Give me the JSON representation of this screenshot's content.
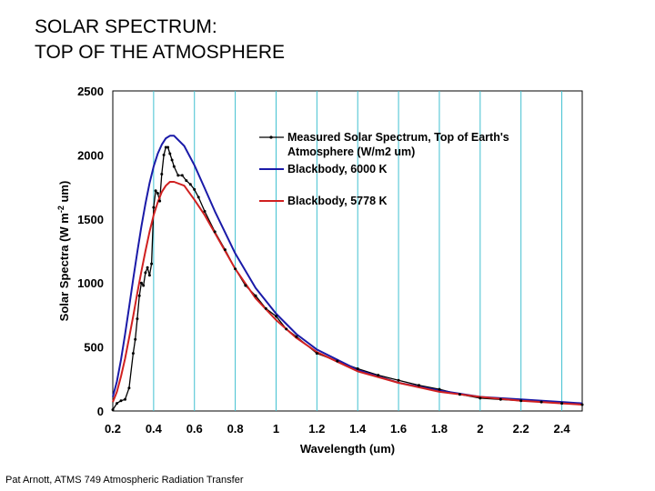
{
  "slide": {
    "title_line1": "SOLAR SPECTRUM:",
    "title_line2": "TOP OF THE ATMOSPHERE",
    "footer": "Pat Arnott, ATMS 749 Atmospheric Radiation Transfer"
  },
  "chart_data": {
    "type": "line",
    "title": "",
    "xlabel": "Wavelength (um)",
    "ylabel_main": "Solar Spectra (W m",
    "ylabel_sup": "-2",
    "ylabel_tail": " um)",
    "xlim": [
      0.2,
      2.5
    ],
    "ylim": [
      0,
      2500
    ],
    "x_ticks": [
      0.2,
      0.4,
      0.6,
      0.8,
      1,
      1.2,
      1.4,
      1.6,
      1.8,
      2,
      2.2,
      2.4
    ],
    "x_tick_labels": [
      "0.2",
      "0.4",
      "0.6",
      "0.8",
      "1",
      "1.2",
      "1.4",
      "1.6",
      "1.8",
      "2",
      "2.2",
      "2.4"
    ],
    "y_ticks": [
      0,
      500,
      1000,
      1500,
      2000,
      2500
    ],
    "y_tick_labels": [
      "0",
      "500",
      "1000",
      "1500",
      "2000",
      "2500"
    ],
    "grid": "vertical",
    "legend_position": "top-right",
    "colors": {
      "measured": "#000000",
      "bb6000": "#1a1aa8",
      "bb5778": "#d02020",
      "grid": "#40c0d0"
    },
    "series": [
      {
        "key": "measured",
        "name_line1": "Measured Solar Spectrum, Top of Earth's",
        "name_line2": "Atmosphere (W/m2 um)",
        "x": [
          0.2,
          0.22,
          0.24,
          0.26,
          0.28,
          0.3,
          0.31,
          0.32,
          0.33,
          0.34,
          0.35,
          0.36,
          0.37,
          0.38,
          0.39,
          0.4,
          0.41,
          0.42,
          0.43,
          0.44,
          0.45,
          0.46,
          0.47,
          0.48,
          0.49,
          0.5,
          0.52,
          0.54,
          0.56,
          0.58,
          0.6,
          0.62,
          0.65,
          0.7,
          0.75,
          0.8,
          0.85,
          0.9,
          0.95,
          1.0,
          1.05,
          1.1,
          1.2,
          1.3,
          1.4,
          1.5,
          1.6,
          1.7,
          1.8,
          1.9,
          2.0,
          2.1,
          2.2,
          2.3,
          2.4,
          2.5
        ],
        "y": [
          10,
          60,
          80,
          90,
          180,
          450,
          560,
          720,
          900,
          1000,
          980,
          1080,
          1120,
          1060,
          1150,
          1590,
          1720,
          1700,
          1640,
          1850,
          2000,
          2060,
          2060,
          2010,
          1960,
          1910,
          1840,
          1840,
          1800,
          1770,
          1730,
          1670,
          1560,
          1400,
          1260,
          1110,
          980,
          900,
          800,
          740,
          640,
          580,
          450,
          390,
          330,
          280,
          240,
          200,
          170,
          130,
          100,
          90,
          80,
          70,
          60,
          50
        ]
      },
      {
        "key": "bb6000",
        "name_line1": "Blackbody, 6000 K",
        "x": [
          0.2,
          0.22,
          0.24,
          0.26,
          0.28,
          0.3,
          0.32,
          0.34,
          0.36,
          0.38,
          0.4,
          0.42,
          0.44,
          0.46,
          0.48,
          0.5,
          0.55,
          0.6,
          0.65,
          0.7,
          0.8,
          0.9,
          1.0,
          1.1,
          1.2,
          1.4,
          1.6,
          1.8,
          2.0,
          2.2,
          2.4,
          2.5
        ],
        "y": [
          110,
          230,
          400,
          600,
          810,
          1030,
          1240,
          1440,
          1620,
          1780,
          1910,
          2010,
          2080,
          2130,
          2150,
          2150,
          2070,
          1920,
          1740,
          1560,
          1230,
          960,
          760,
          600,
          480,
          320,
          220,
          160,
          110,
          90,
          70,
          60
        ]
      },
      {
        "key": "bb5778",
        "name_line1": "Blackbody, 5778 K",
        "x": [
          0.2,
          0.22,
          0.24,
          0.26,
          0.28,
          0.3,
          0.32,
          0.34,
          0.36,
          0.38,
          0.4,
          0.42,
          0.44,
          0.46,
          0.48,
          0.5,
          0.55,
          0.6,
          0.65,
          0.7,
          0.8,
          0.9,
          1.0,
          1.1,
          1.2,
          1.4,
          1.6,
          1.8,
          2.0,
          2.2,
          2.4,
          2.5
        ],
        "y": [
          70,
          150,
          270,
          410,
          570,
          740,
          920,
          1090,
          1250,
          1400,
          1530,
          1630,
          1710,
          1760,
          1790,
          1790,
          1760,
          1650,
          1530,
          1390,
          1110,
          880,
          710,
          570,
          460,
          310,
          220,
          150,
          110,
          80,
          60,
          50
        ]
      }
    ]
  }
}
